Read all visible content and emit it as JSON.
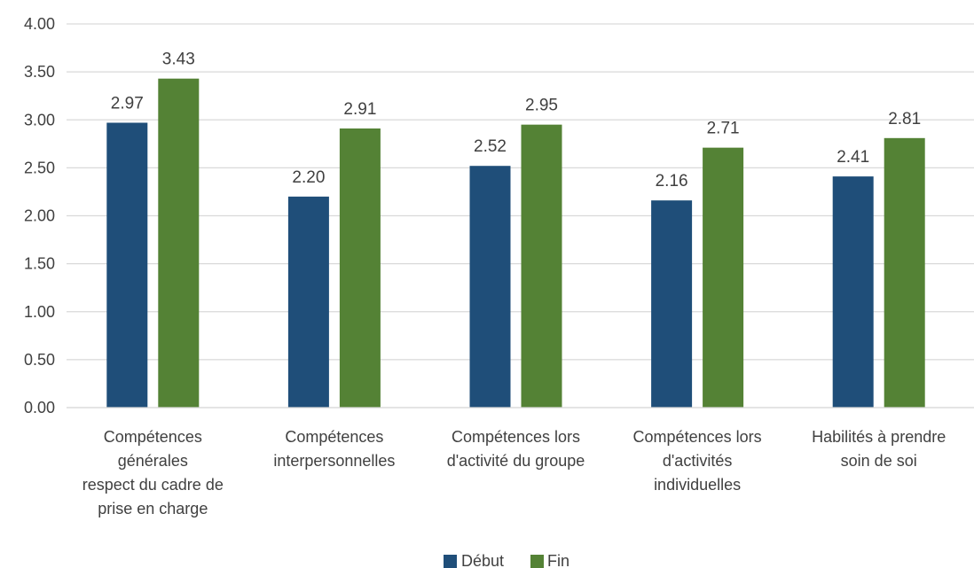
{
  "chart_data": {
    "type": "bar",
    "categories": [
      [
        "Compétences",
        "générales",
        "respect du cadre de",
        "prise en charge"
      ],
      [
        "Compétences",
        "interpersonnelles"
      ],
      [
        "Compétences lors",
        "d'activité du groupe"
      ],
      [
        "Compétences lors",
        "d'activités",
        "individuelles"
      ],
      [
        "Habilités à prendre",
        "soin de soi"
      ]
    ],
    "series": [
      {
        "name": "Début",
        "values": [
          2.97,
          2.2,
          2.52,
          2.16,
          2.41
        ],
        "labels": [
          "2.97",
          "2.20",
          "2.52",
          "2.16",
          "2.41"
        ],
        "color": "#1f4e79"
      },
      {
        "name": "Fin",
        "values": [
          3.43,
          2.91,
          2.95,
          2.71,
          2.81
        ],
        "labels": [
          "3.43",
          "2.91",
          "2.95",
          "2.71",
          "2.81"
        ],
        "color": "#548235"
      }
    ],
    "ylim": [
      0,
      4
    ],
    "yticks": [
      "0.00",
      "0.50",
      "1.00",
      "1.50",
      "2.00",
      "2.50",
      "3.00",
      "3.50",
      "4.00"
    ],
    "grid": true,
    "gridline_color": "#d9d9d9",
    "legend_position": "bottom"
  }
}
